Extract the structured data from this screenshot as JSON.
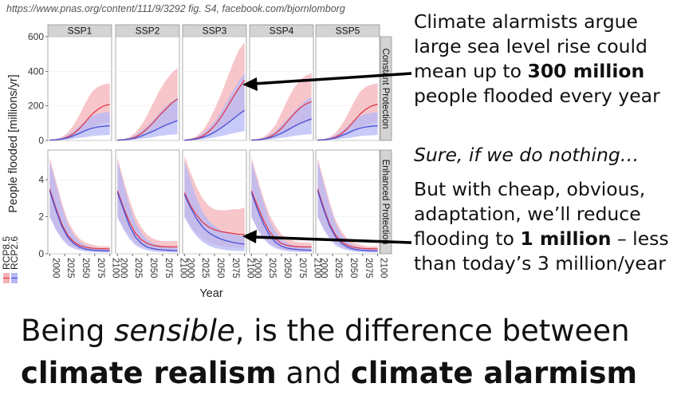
{
  "source_note": "https://www.pnas.org/content/111/9/3292 fig. S4, facebook.com/bjornlomborg",
  "annotations": {
    "a1": {
      "line1": "Climate alarmists argue",
      "line2": "large sea level rise could",
      "line3_pre": "mean up to ",
      "line3_bold": "300 million",
      "line4": "people flooded every year"
    },
    "a2": "Sure, if we do nothing…",
    "a3": {
      "line1": "But with cheap, obvious,",
      "line2": "adaptation, we’ll reduce",
      "line3_pre": "flooding to ",
      "line3_bold": "1 million",
      "line3_post": " – less",
      "line4": "than today’s 3 million/year"
    }
  },
  "bottom": {
    "pre": "Being ",
    "italic": "sensible",
    "mid": ", is the difference between",
    "bold1": "climate realism",
    "and": " and ",
    "bold2": "climate alarmism"
  },
  "colors": {
    "rcp85": "#e0394b",
    "rcp85_band": "#f4b3b8",
    "rcp26": "#4a4fd6",
    "rcp26_band": "#b6b8f5",
    "strip": "#d4d4d4"
  },
  "chart_data": {
    "type": "area",
    "ylabel": "People flooded [millions/yr]",
    "xlabel": "Year",
    "panels": [
      "SSP1",
      "SSP2",
      "SSP3",
      "SSP4",
      "SSP5"
    ],
    "rows": [
      {
        "name": "Constant Protection",
        "ylim": [
          0,
          600
        ],
        "yticks": [
          0,
          200,
          400,
          600
        ]
      },
      {
        "name": "Enhanced Protection",
        "ylim": [
          0,
          5.6
        ],
        "yticks": [
          0,
          2,
          4
        ]
      }
    ],
    "x_ticks": [
      "2000",
      "2025",
      "2050",
      "2075",
      "2100"
    ],
    "x": [
      2000,
      2010,
      2020,
      2030,
      2040,
      2050,
      2060,
      2070,
      2080,
      2090,
      2100
    ],
    "legend": [
      "RCP8.5",
      "RCP2.6"
    ],
    "constant": {
      "SSP1": {
        "rcp85": {
          "mid": [
            2,
            4,
            9,
            20,
            40,
            70,
            110,
            150,
            180,
            200,
            210
          ],
          "lo": [
            1,
            2,
            4,
            10,
            20,
            35,
            55,
            75,
            90,
            100,
            105
          ],
          "hi": [
            4,
            8,
            20,
            45,
            90,
            150,
            220,
            280,
            310,
            325,
            330
          ]
        },
        "rcp26": {
          "mid": [
            2,
            4,
            8,
            15,
            28,
            42,
            58,
            70,
            78,
            82,
            85
          ],
          "lo": [
            1,
            2,
            3,
            6,
            10,
            15,
            20,
            25,
            28,
            30,
            32
          ],
          "hi": [
            3,
            7,
            15,
            30,
            55,
            85,
            115,
            140,
            155,
            160,
            165
          ]
        }
      },
      "SSP2": {
        "rcp85": {
          "mid": [
            2,
            4,
            9,
            20,
            40,
            70,
            105,
            145,
            180,
            215,
            240
          ],
          "lo": [
            1,
            2,
            4,
            10,
            20,
            35,
            50,
            70,
            90,
            105,
            115
          ],
          "hi": [
            4,
            8,
            20,
            45,
            90,
            150,
            220,
            290,
            345,
            390,
            420
          ]
        },
        "rcp26": {
          "mid": [
            2,
            4,
            8,
            14,
            26,
            40,
            55,
            72,
            88,
            102,
            115
          ],
          "lo": [
            1,
            2,
            3,
            6,
            10,
            15,
            20,
            26,
            30,
            34,
            36
          ],
          "hi": [
            3,
            7,
            15,
            30,
            55,
            85,
            120,
            160,
            195,
            225,
            250
          ]
        }
      },
      "SSP3": {
        "rcp85": {
          "mid": [
            2,
            5,
            12,
            25,
            50,
            85,
            130,
            185,
            245,
            300,
            350
          ],
          "lo": [
            1,
            2,
            5,
            12,
            25,
            42,
            65,
            90,
            120,
            145,
            165
          ],
          "hi": [
            4,
            10,
            25,
            55,
            110,
            180,
            260,
            350,
            440,
            520,
            570
          ]
        },
        "rcp26": {
          "mid": [
            2,
            4,
            9,
            18,
            30,
            48,
            70,
            95,
            122,
            150,
            175
          ],
          "lo": [
            1,
            2,
            4,
            7,
            12,
            18,
            25,
            32,
            40,
            48,
            55
          ],
          "hi": [
            3,
            8,
            18,
            38,
            70,
            110,
            160,
            220,
            280,
            340,
            390
          ]
        }
      },
      "SSP4": {
        "rcp85": {
          "mid": [
            2,
            4,
            9,
            20,
            40,
            70,
            110,
            150,
            185,
            210,
            225
          ],
          "lo": [
            1,
            2,
            4,
            10,
            20,
            35,
            52,
            72,
            90,
            100,
            108
          ],
          "hi": [
            4,
            8,
            20,
            45,
            90,
            160,
            235,
            300,
            345,
            375,
            390
          ]
        },
        "rcp26": {
          "mid": [
            2,
            4,
            8,
            15,
            27,
            42,
            60,
            80,
            98,
            112,
            125
          ],
          "lo": [
            1,
            2,
            3,
            6,
            10,
            15,
            20,
            26,
            30,
            34,
            37
          ],
          "hi": [
            3,
            7,
            15,
            30,
            55,
            90,
            125,
            165,
            200,
            230,
            250
          ]
        }
      },
      "SSP5": {
        "rcp85": {
          "mid": [
            2,
            4,
            9,
            20,
            40,
            70,
            110,
            150,
            180,
            200,
            210
          ],
          "lo": [
            1,
            2,
            4,
            10,
            20,
            35,
            55,
            75,
            90,
            100,
            105
          ],
          "hi": [
            4,
            8,
            20,
            45,
            90,
            150,
            220,
            280,
            310,
            325,
            330
          ]
        },
        "rcp26": {
          "mid": [
            2,
            4,
            8,
            15,
            28,
            42,
            58,
            70,
            78,
            82,
            85
          ],
          "lo": [
            1,
            2,
            3,
            6,
            10,
            15,
            20,
            25,
            28,
            30,
            32
          ],
          "hi": [
            3,
            7,
            15,
            30,
            55,
            85,
            115,
            140,
            155,
            160,
            165
          ]
        }
      }
    },
    "enhanced": {
      "SSP1": {
        "rcp85": {
          "mid": [
            3.5,
            2.5,
            1.6,
            1.0,
            0.65,
            0.45,
            0.35,
            0.3,
            0.28,
            0.27,
            0.26
          ],
          "lo": [
            2.0,
            1.4,
            0.9,
            0.55,
            0.35,
            0.25,
            0.18,
            0.15,
            0.13,
            0.12,
            0.11
          ],
          "hi": [
            5.2,
            4.0,
            2.8,
            1.8,
            1.2,
            0.8,
            0.6,
            0.5,
            0.42,
            0.4,
            0.4
          ]
        },
        "rcp26": {
          "mid": [
            3.4,
            2.4,
            1.5,
            0.9,
            0.55,
            0.35,
            0.25,
            0.2,
            0.18,
            0.16,
            0.15
          ],
          "lo": [
            2.0,
            1.3,
            0.8,
            0.45,
            0.28,
            0.18,
            0.12,
            0.1,
            0.08,
            0.07,
            0.07
          ],
          "hi": [
            5.0,
            3.8,
            2.6,
            1.6,
            1.0,
            0.65,
            0.45,
            0.35,
            0.3,
            0.28,
            0.27
          ]
        }
      },
      "SSP2": {
        "rcp85": {
          "mid": [
            3.4,
            2.5,
            1.7,
            1.1,
            0.75,
            0.55,
            0.45,
            0.4,
            0.38,
            0.37,
            0.37
          ],
          "lo": [
            2.0,
            1.4,
            0.95,
            0.6,
            0.4,
            0.28,
            0.22,
            0.18,
            0.16,
            0.15,
            0.15
          ],
          "hi": [
            5.2,
            4.0,
            2.9,
            2.0,
            1.4,
            1.0,
            0.8,
            0.7,
            0.68,
            0.68,
            0.7
          ]
        },
        "rcp26": {
          "mid": [
            3.3,
            2.4,
            1.5,
            0.9,
            0.55,
            0.35,
            0.27,
            0.22,
            0.2,
            0.18,
            0.17
          ],
          "lo": [
            2.0,
            1.3,
            0.8,
            0.45,
            0.28,
            0.18,
            0.12,
            0.1,
            0.08,
            0.07,
            0.07
          ],
          "hi": [
            5.0,
            3.8,
            2.6,
            1.7,
            1.1,
            0.75,
            0.55,
            0.45,
            0.38,
            0.35,
            0.33
          ]
        }
      },
      "SSP3": {
        "rcp85": {
          "mid": [
            3.3,
            2.6,
            2.1,
            1.7,
            1.45,
            1.3,
            1.2,
            1.15,
            1.1,
            1.05,
            1.05
          ],
          "lo": [
            2.0,
            1.5,
            1.1,
            0.8,
            0.6,
            0.5,
            0.42,
            0.38,
            0.35,
            0.33,
            0.32
          ],
          "hi": [
            5.3,
            4.4,
            3.6,
            3.0,
            2.6,
            2.4,
            2.35,
            2.35,
            2.4,
            2.4,
            2.5
          ]
        },
        "rcp26": {
          "mid": [
            3.2,
            2.5,
            1.9,
            1.45,
            1.15,
            0.95,
            0.8,
            0.7,
            0.62,
            0.56,
            0.52
          ],
          "lo": [
            2.0,
            1.4,
            0.95,
            0.65,
            0.45,
            0.32,
            0.25,
            0.2,
            0.17,
            0.15,
            0.14
          ],
          "hi": [
            5.0,
            4.0,
            3.0,
            2.3,
            1.8,
            1.5,
            1.3,
            1.15,
            1.05,
            1.0,
            0.95
          ]
        }
      },
      "SSP4": {
        "rcp85": {
          "mid": [
            3.4,
            2.6,
            1.8,
            1.2,
            0.8,
            0.55,
            0.45,
            0.4,
            0.38,
            0.37,
            0.37
          ],
          "lo": [
            2.0,
            1.4,
            0.95,
            0.6,
            0.38,
            0.26,
            0.2,
            0.17,
            0.15,
            0.14,
            0.14
          ],
          "hi": [
            5.2,
            4.1,
            3.0,
            2.1,
            1.5,
            1.05,
            0.8,
            0.68,
            0.62,
            0.6,
            0.6
          ]
        },
        "rcp26": {
          "mid": [
            3.3,
            2.4,
            1.6,
            1.0,
            0.62,
            0.4,
            0.3,
            0.25,
            0.22,
            0.2,
            0.19
          ],
          "lo": [
            2.0,
            1.3,
            0.8,
            0.48,
            0.3,
            0.2,
            0.14,
            0.11,
            0.09,
            0.08,
            0.08
          ],
          "hi": [
            5.0,
            3.9,
            2.8,
            1.8,
            1.2,
            0.8,
            0.58,
            0.46,
            0.4,
            0.37,
            0.35
          ]
        }
      },
      "SSP5": {
        "rcp85": {
          "mid": [
            3.5,
            2.5,
            1.6,
            1.0,
            0.65,
            0.45,
            0.35,
            0.3,
            0.28,
            0.27,
            0.26
          ],
          "lo": [
            2.0,
            1.4,
            0.9,
            0.55,
            0.35,
            0.25,
            0.18,
            0.15,
            0.13,
            0.12,
            0.11
          ],
          "hi": [
            5.2,
            4.0,
            2.8,
            1.8,
            1.2,
            0.8,
            0.6,
            0.5,
            0.42,
            0.4,
            0.4
          ]
        },
        "rcp26": {
          "mid": [
            3.4,
            2.4,
            1.5,
            0.9,
            0.55,
            0.35,
            0.25,
            0.2,
            0.18,
            0.16,
            0.15
          ],
          "lo": [
            2.0,
            1.3,
            0.8,
            0.45,
            0.28,
            0.18,
            0.12,
            0.1,
            0.08,
            0.07,
            0.07
          ],
          "hi": [
            5.0,
            3.8,
            2.6,
            1.6,
            1.0,
            0.65,
            0.45,
            0.35,
            0.3,
            0.28,
            0.27
          ]
        }
      }
    }
  }
}
